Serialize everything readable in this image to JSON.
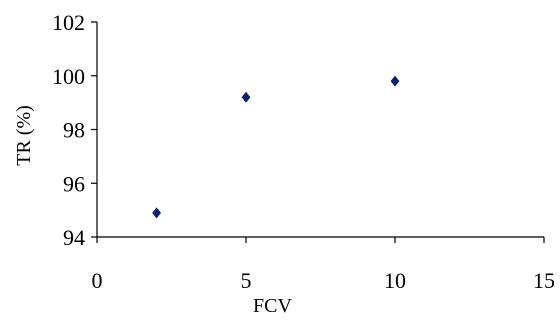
{
  "chart_data": {
    "type": "scatter",
    "title": "",
    "xlabel": "FCV",
    "ylabel": "TR (%)",
    "xlim": [
      0,
      15
    ],
    "ylim": [
      94,
      102
    ],
    "x_ticks": [
      "0",
      "5",
      "10",
      "15"
    ],
    "y_ticks": [
      "94",
      "96",
      "98",
      "100",
      "102"
    ],
    "grid": false,
    "legend": "none",
    "marker": "diamond",
    "series": [
      {
        "color": "#0a1f6e",
        "points": [
          {
            "x": 2,
            "y": 94.9
          },
          {
            "x": 5,
            "y": 99.2
          },
          {
            "x": 10,
            "y": 99.8
          }
        ]
      }
    ]
  }
}
